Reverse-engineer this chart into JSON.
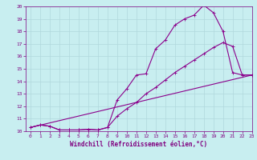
{
  "lines": [
    {
      "x": [
        0,
        1,
        2,
        3,
        4,
        5,
        6,
        7,
        8,
        9,
        10,
        11,
        12,
        13,
        14,
        15,
        16,
        17,
        18,
        19,
        20,
        21,
        22,
        23
      ],
      "y": [
        10.3,
        10.5,
        10.4,
        10.1,
        10.1,
        10.1,
        10.15,
        10.1,
        10.3,
        12.5,
        13.4,
        14.5,
        14.6,
        16.6,
        17.3,
        18.5,
        19.0,
        19.3,
        20.1,
        19.5,
        18.0,
        14.7,
        14.5,
        14.5
      ],
      "color": "#8B008B",
      "marker": "+",
      "markersize": 3,
      "linewidth": 0.8
    },
    {
      "x": [
        0,
        1,
        2,
        3,
        4,
        5,
        6,
        7,
        8,
        9,
        10,
        11,
        12,
        13,
        14,
        15,
        16,
        17,
        18,
        19,
        20,
        21,
        22,
        23
      ],
      "y": [
        10.3,
        10.5,
        10.4,
        10.1,
        10.1,
        10.1,
        10.15,
        10.1,
        10.3,
        11.2,
        11.8,
        12.3,
        13.0,
        13.5,
        14.1,
        14.7,
        15.2,
        15.7,
        16.2,
        16.7,
        17.1,
        16.8,
        14.5,
        14.5
      ],
      "color": "#8B008B",
      "marker": "+",
      "markersize": 3,
      "linewidth": 0.8
    },
    {
      "x": [
        0,
        23
      ],
      "y": [
        10.3,
        14.5
      ],
      "color": "#8B008B",
      "marker": null,
      "markersize": 0,
      "linewidth": 0.8
    }
  ],
  "xlim": [
    -0.5,
    23
  ],
  "ylim": [
    10,
    20
  ],
  "xticks": [
    0,
    1,
    2,
    3,
    4,
    5,
    6,
    7,
    8,
    9,
    10,
    11,
    12,
    13,
    14,
    15,
    16,
    17,
    18,
    19,
    20,
    21,
    22,
    23
  ],
  "yticks": [
    10,
    11,
    12,
    13,
    14,
    15,
    16,
    17,
    18,
    19,
    20
  ],
  "xlabel": "Windchill (Refroidissement éolien,°C)",
  "ylabel": "",
  "title": "",
  "bg_color": "#c8eef0",
  "grid_color": "#b0d8dc",
  "tick_color": "#800080",
  "label_color": "#800080",
  "tick_fontsize": 4.5,
  "xlabel_fontsize": 5.5
}
